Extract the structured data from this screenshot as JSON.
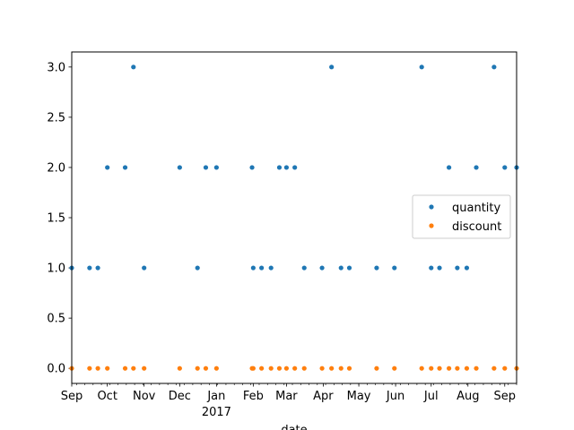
{
  "chart_data": {
    "type": "scatter",
    "title": "",
    "xlabel": "date",
    "ylabel": "",
    "x_axis": {
      "type": "date",
      "range": [
        "2016-09-01",
        "2017-09-11"
      ],
      "major_ticks": [
        {
          "date": "2016-09-01",
          "label": "Sep"
        },
        {
          "date": "2016-10-01",
          "label": "Oct"
        },
        {
          "date": "2016-11-01",
          "label": "Nov"
        },
        {
          "date": "2016-12-01",
          "label": "Dec"
        },
        {
          "date": "2017-01-01",
          "label": "Jan",
          "sublabel": "2017"
        },
        {
          "date": "2017-02-01",
          "label": "Feb"
        },
        {
          "date": "2017-03-01",
          "label": "Mar"
        },
        {
          "date": "2017-04-01",
          "label": "Apr"
        },
        {
          "date": "2017-05-01",
          "label": "May"
        },
        {
          "date": "2017-06-01",
          "label": "Jun"
        },
        {
          "date": "2017-07-01",
          "label": "Jul"
        },
        {
          "date": "2017-08-01",
          "label": "Aug"
        },
        {
          "date": "2017-09-01",
          "label": "Sep"
        }
      ],
      "minor_tick_interval": "week"
    },
    "y_axis": {
      "range": [
        -0.15,
        3.15
      ],
      "ticks": [
        0.0,
        0.5,
        1.0,
        1.5,
        2.0,
        2.5,
        3.0
      ],
      "tick_labels": [
        "0.0",
        "0.5",
        "1.0",
        "1.5",
        "2.0",
        "2.5",
        "3.0"
      ]
    },
    "grid": false,
    "legend_position": "center-right",
    "series": [
      {
        "name": "quantity",
        "color": "#1f77b4",
        "x": [
          "2016-09-01",
          "2016-09-16",
          "2016-09-23",
          "2016-10-01",
          "2016-10-16",
          "2016-10-23",
          "2016-11-01",
          "2016-12-01",
          "2016-12-16",
          "2016-12-23",
          "2017-01-01",
          "2017-01-31",
          "2017-02-01",
          "2017-02-08",
          "2017-02-16",
          "2017-02-23",
          "2017-03-01",
          "2017-03-08",
          "2017-03-16",
          "2017-03-31",
          "2017-04-08",
          "2017-04-16",
          "2017-04-23",
          "2017-05-16",
          "2017-05-31",
          "2017-06-23",
          "2017-07-01",
          "2017-07-08",
          "2017-07-16",
          "2017-07-23",
          "2017-07-31",
          "2017-08-08",
          "2017-08-23",
          "2017-09-01",
          "2017-09-11"
        ],
        "y": [
          1,
          1,
          1,
          2,
          2,
          3,
          1,
          2,
          1,
          2,
          2,
          2,
          1,
          1,
          1,
          2,
          2,
          2,
          1,
          1,
          3,
          1,
          1,
          1,
          1,
          3,
          1,
          1,
          2,
          1,
          1,
          2,
          3,
          2,
          2
        ]
      },
      {
        "name": "discount",
        "color": "#ff7f0e",
        "x": [
          "2016-09-01",
          "2016-09-16",
          "2016-09-23",
          "2016-10-01",
          "2016-10-16",
          "2016-10-23",
          "2016-11-01",
          "2016-12-01",
          "2016-12-16",
          "2016-12-23",
          "2017-01-01",
          "2017-01-31",
          "2017-02-01",
          "2017-02-08",
          "2017-02-16",
          "2017-02-23",
          "2017-03-01",
          "2017-03-08",
          "2017-03-16",
          "2017-03-31",
          "2017-04-08",
          "2017-04-16",
          "2017-04-23",
          "2017-05-16",
          "2017-05-31",
          "2017-06-23",
          "2017-07-01",
          "2017-07-08",
          "2017-07-16",
          "2017-07-23",
          "2017-07-31",
          "2017-08-08",
          "2017-08-23",
          "2017-09-01",
          "2017-09-11"
        ],
        "y": [
          0,
          0,
          0,
          0,
          0,
          0,
          0,
          0,
          0,
          0,
          0,
          0,
          0,
          0,
          0,
          0,
          0,
          0,
          0,
          0,
          0,
          0,
          0,
          0,
          0,
          0,
          0,
          0,
          0,
          0,
          0,
          0,
          0,
          0,
          0
        ]
      }
    ]
  }
}
